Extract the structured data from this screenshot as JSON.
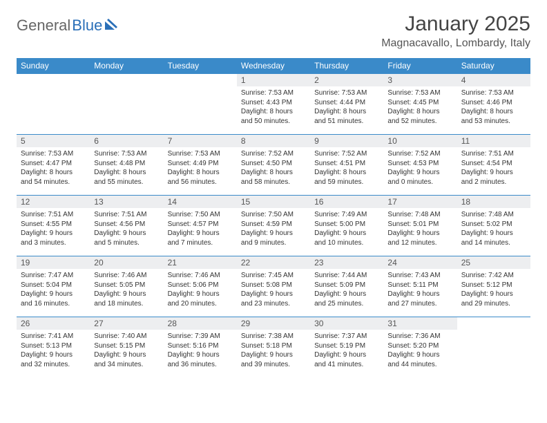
{
  "logo": {
    "text1": "General",
    "text2": "Blue"
  },
  "title": "January 2025",
  "location": "Magnacavallo, Lombardy, Italy",
  "brand_color": "#3a8ac9",
  "header_bg": "#edeef0",
  "day_names": [
    "Sunday",
    "Monday",
    "Tuesday",
    "Wednesday",
    "Thursday",
    "Friday",
    "Saturday"
  ],
  "weeks": [
    [
      {
        "empty": true
      },
      {
        "empty": true
      },
      {
        "empty": true
      },
      {
        "n": "1",
        "sr": "Sunrise: 7:53 AM",
        "ss": "Sunset: 4:43 PM",
        "d1": "Daylight: 8 hours",
        "d2": "and 50 minutes."
      },
      {
        "n": "2",
        "sr": "Sunrise: 7:53 AM",
        "ss": "Sunset: 4:44 PM",
        "d1": "Daylight: 8 hours",
        "d2": "and 51 minutes."
      },
      {
        "n": "3",
        "sr": "Sunrise: 7:53 AM",
        "ss": "Sunset: 4:45 PM",
        "d1": "Daylight: 8 hours",
        "d2": "and 52 minutes."
      },
      {
        "n": "4",
        "sr": "Sunrise: 7:53 AM",
        "ss": "Sunset: 4:46 PM",
        "d1": "Daylight: 8 hours",
        "d2": "and 53 minutes."
      }
    ],
    [
      {
        "n": "5",
        "sr": "Sunrise: 7:53 AM",
        "ss": "Sunset: 4:47 PM",
        "d1": "Daylight: 8 hours",
        "d2": "and 54 minutes."
      },
      {
        "n": "6",
        "sr": "Sunrise: 7:53 AM",
        "ss": "Sunset: 4:48 PM",
        "d1": "Daylight: 8 hours",
        "d2": "and 55 minutes."
      },
      {
        "n": "7",
        "sr": "Sunrise: 7:53 AM",
        "ss": "Sunset: 4:49 PM",
        "d1": "Daylight: 8 hours",
        "d2": "and 56 minutes."
      },
      {
        "n": "8",
        "sr": "Sunrise: 7:52 AM",
        "ss": "Sunset: 4:50 PM",
        "d1": "Daylight: 8 hours",
        "d2": "and 58 minutes."
      },
      {
        "n": "9",
        "sr": "Sunrise: 7:52 AM",
        "ss": "Sunset: 4:51 PM",
        "d1": "Daylight: 8 hours",
        "d2": "and 59 minutes."
      },
      {
        "n": "10",
        "sr": "Sunrise: 7:52 AM",
        "ss": "Sunset: 4:53 PM",
        "d1": "Daylight: 9 hours",
        "d2": "and 0 minutes."
      },
      {
        "n": "11",
        "sr": "Sunrise: 7:51 AM",
        "ss": "Sunset: 4:54 PM",
        "d1": "Daylight: 9 hours",
        "d2": "and 2 minutes."
      }
    ],
    [
      {
        "n": "12",
        "sr": "Sunrise: 7:51 AM",
        "ss": "Sunset: 4:55 PM",
        "d1": "Daylight: 9 hours",
        "d2": "and 3 minutes."
      },
      {
        "n": "13",
        "sr": "Sunrise: 7:51 AM",
        "ss": "Sunset: 4:56 PM",
        "d1": "Daylight: 9 hours",
        "d2": "and 5 minutes."
      },
      {
        "n": "14",
        "sr": "Sunrise: 7:50 AM",
        "ss": "Sunset: 4:57 PM",
        "d1": "Daylight: 9 hours",
        "d2": "and 7 minutes."
      },
      {
        "n": "15",
        "sr": "Sunrise: 7:50 AM",
        "ss": "Sunset: 4:59 PM",
        "d1": "Daylight: 9 hours",
        "d2": "and 9 minutes."
      },
      {
        "n": "16",
        "sr": "Sunrise: 7:49 AM",
        "ss": "Sunset: 5:00 PM",
        "d1": "Daylight: 9 hours",
        "d2": "and 10 minutes."
      },
      {
        "n": "17",
        "sr": "Sunrise: 7:48 AM",
        "ss": "Sunset: 5:01 PM",
        "d1": "Daylight: 9 hours",
        "d2": "and 12 minutes."
      },
      {
        "n": "18",
        "sr": "Sunrise: 7:48 AM",
        "ss": "Sunset: 5:02 PM",
        "d1": "Daylight: 9 hours",
        "d2": "and 14 minutes."
      }
    ],
    [
      {
        "n": "19",
        "sr": "Sunrise: 7:47 AM",
        "ss": "Sunset: 5:04 PM",
        "d1": "Daylight: 9 hours",
        "d2": "and 16 minutes."
      },
      {
        "n": "20",
        "sr": "Sunrise: 7:46 AM",
        "ss": "Sunset: 5:05 PM",
        "d1": "Daylight: 9 hours",
        "d2": "and 18 minutes."
      },
      {
        "n": "21",
        "sr": "Sunrise: 7:46 AM",
        "ss": "Sunset: 5:06 PM",
        "d1": "Daylight: 9 hours",
        "d2": "and 20 minutes."
      },
      {
        "n": "22",
        "sr": "Sunrise: 7:45 AM",
        "ss": "Sunset: 5:08 PM",
        "d1": "Daylight: 9 hours",
        "d2": "and 23 minutes."
      },
      {
        "n": "23",
        "sr": "Sunrise: 7:44 AM",
        "ss": "Sunset: 5:09 PM",
        "d1": "Daylight: 9 hours",
        "d2": "and 25 minutes."
      },
      {
        "n": "24",
        "sr": "Sunrise: 7:43 AM",
        "ss": "Sunset: 5:11 PM",
        "d1": "Daylight: 9 hours",
        "d2": "and 27 minutes."
      },
      {
        "n": "25",
        "sr": "Sunrise: 7:42 AM",
        "ss": "Sunset: 5:12 PM",
        "d1": "Daylight: 9 hours",
        "d2": "and 29 minutes."
      }
    ],
    [
      {
        "n": "26",
        "sr": "Sunrise: 7:41 AM",
        "ss": "Sunset: 5:13 PM",
        "d1": "Daylight: 9 hours",
        "d2": "and 32 minutes."
      },
      {
        "n": "27",
        "sr": "Sunrise: 7:40 AM",
        "ss": "Sunset: 5:15 PM",
        "d1": "Daylight: 9 hours",
        "d2": "and 34 minutes."
      },
      {
        "n": "28",
        "sr": "Sunrise: 7:39 AM",
        "ss": "Sunset: 5:16 PM",
        "d1": "Daylight: 9 hours",
        "d2": "and 36 minutes."
      },
      {
        "n": "29",
        "sr": "Sunrise: 7:38 AM",
        "ss": "Sunset: 5:18 PM",
        "d1": "Daylight: 9 hours",
        "d2": "and 39 minutes."
      },
      {
        "n": "30",
        "sr": "Sunrise: 7:37 AM",
        "ss": "Sunset: 5:19 PM",
        "d1": "Daylight: 9 hours",
        "d2": "and 41 minutes."
      },
      {
        "n": "31",
        "sr": "Sunrise: 7:36 AM",
        "ss": "Sunset: 5:20 PM",
        "d1": "Daylight: 9 hours",
        "d2": "and 44 minutes."
      },
      {
        "empty": true
      }
    ]
  ]
}
